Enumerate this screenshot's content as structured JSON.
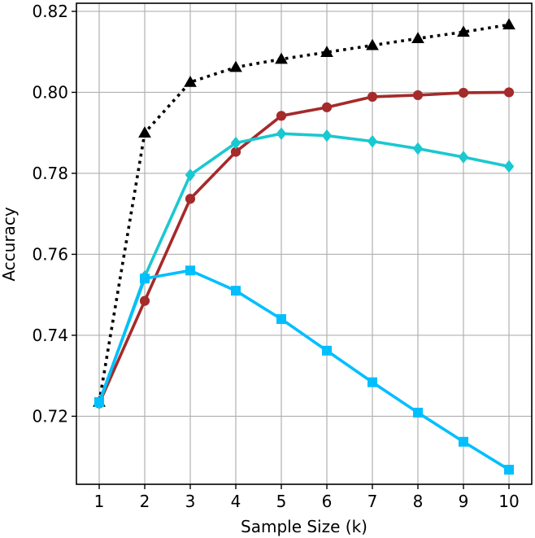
{
  "chart_data": {
    "type": "line",
    "title": "",
    "xlabel": "Sample Size (k)",
    "ylabel": "Accuracy",
    "x": [
      1,
      2,
      3,
      4,
      5,
      6,
      7,
      8,
      9,
      10
    ],
    "x_ticks": [
      "1",
      "2",
      "3",
      "4",
      "5",
      "6",
      "7",
      "8",
      "9",
      "10"
    ],
    "y_ticks": [
      "0.72",
      "0.74",
      "0.76",
      "0.78",
      "0.80",
      "0.82"
    ],
    "xlim": [
      0.5,
      10.5
    ],
    "ylim": [
      0.7032,
      0.822
    ],
    "grid": true,
    "legend": "none",
    "series": [
      {
        "color": "#000000",
        "line_style": "dotted",
        "marker": "triangle",
        "values": [
          0.7235,
          0.79,
          0.8025,
          0.8062,
          0.8082,
          0.8099,
          0.8116,
          0.8133,
          0.8149,
          0.8167
        ]
      },
      {
        "color": "#a52a2a",
        "line_style": "solid",
        "marker": "circle",
        "values": [
          0.7232,
          0.7485,
          0.7737,
          0.7853,
          0.7942,
          0.7963,
          0.7989,
          0.7993,
          0.7999,
          0.8
        ]
      },
      {
        "color": "#1ac8d0",
        "line_style": "solid",
        "marker": "diamond",
        "values": [
          0.7232,
          0.7545,
          0.7796,
          0.7875,
          0.7898,
          0.7893,
          0.7879,
          0.7861,
          0.784,
          0.7817
        ]
      },
      {
        "color": "#00bfff",
        "line_style": "solid",
        "marker": "square",
        "values": [
          0.7235,
          0.754,
          0.756,
          0.751,
          0.744,
          0.7362,
          0.7284,
          0.7209,
          0.7137,
          0.7068
        ]
      }
    ]
  }
}
